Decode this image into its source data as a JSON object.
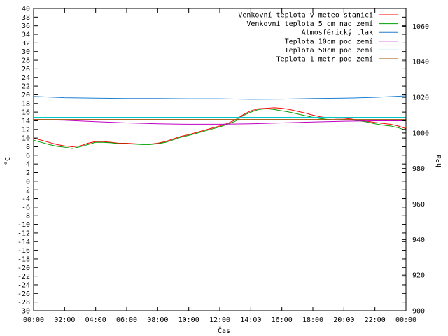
{
  "chart_data": {
    "type": "line",
    "xlabel": "Čas",
    "ylabel": "°C",
    "y2label": "hPa",
    "x_ticks": [
      "00:00",
      "02:00",
      "04:00",
      "06:00",
      "08:00",
      "10:00",
      "12:00",
      "14:00",
      "16:00",
      "18:00",
      "20:00",
      "22:00",
      "00:00"
    ],
    "xlim": [
      0,
      24
    ],
    "ylim": [
      -30,
      40
    ],
    "y_ticks": [
      40,
      38,
      36,
      34,
      32,
      30,
      28,
      26,
      24,
      22,
      20,
      18,
      16,
      14,
      12,
      10,
      8,
      6,
      4,
      2,
      0,
      -2,
      -4,
      -6,
      -8,
      -10,
      -12,
      -14,
      -16,
      -18,
      -20,
      -22,
      -24,
      -26,
      -28,
      -30
    ],
    "y2lim": [
      900,
      1070
    ],
    "y2_ticks": [
      1060,
      1040,
      1020,
      1000,
      980,
      960,
      940,
      920,
      900
    ],
    "grid": false,
    "legend_position": "top-right",
    "series": [
      {
        "name": "Venkovní teplota v meteo stanici",
        "color": "#ff0000",
        "axis": "left",
        "x": [
          0,
          0.5,
          1,
          1.5,
          2,
          2.5,
          3,
          3.5,
          4,
          4.5,
          5,
          5.5,
          6,
          6.5,
          7,
          7.5,
          8,
          8.5,
          9,
          9.5,
          10,
          10.5,
          11,
          11.5,
          12,
          12.5,
          13,
          13.5,
          14,
          14.5,
          15,
          15.5,
          16,
          16.5,
          17,
          17.5,
          18,
          18.5,
          19,
          19.5,
          20,
          20.5,
          21,
          21.5,
          22,
          22.5,
          23,
          23.5,
          24
        ],
        "values": [
          10,
          9.5,
          9,
          8.5,
          8.2,
          8,
          8.2,
          8.8,
          9.2,
          9.2,
          9,
          8.8,
          8.8,
          8.7,
          8.6,
          8.6,
          8.8,
          9.2,
          9.8,
          10.4,
          10.8,
          11.3,
          11.8,
          12.3,
          12.8,
          13.4,
          14.2,
          15.4,
          16.3,
          16.8,
          16.9,
          17,
          16.9,
          16.6,
          16.2,
          15.8,
          15.3,
          14.9,
          14.7,
          14.6,
          14.6,
          14.4,
          14.1,
          13.9,
          13.6,
          13.4,
          13.2,
          12.8,
          12.2
        ]
      },
      {
        "name": "Venkovní teplota 5 cm nad zemí",
        "color": "#00a000",
        "axis": "left",
        "x": [
          0,
          0.5,
          1,
          1.5,
          2,
          2.5,
          3,
          3.5,
          4,
          4.5,
          5,
          5.5,
          6,
          6.5,
          7,
          7.5,
          8,
          8.5,
          9,
          9.5,
          10,
          10.5,
          11,
          11.5,
          12,
          12.5,
          13,
          13.5,
          14,
          14.5,
          15,
          15.5,
          16,
          16.5,
          17,
          17.5,
          18,
          18.5,
          19,
          19.5,
          20,
          20.5,
          21,
          21.5,
          22,
          22.5,
          23,
          23.5,
          24
        ],
        "values": [
          9.5,
          9,
          8.5,
          8.1,
          7.9,
          7.6,
          8,
          8.5,
          9,
          9,
          8.9,
          8.7,
          8.7,
          8.6,
          8.5,
          8.5,
          8.7,
          9,
          9.6,
          10.2,
          10.6,
          11.1,
          11.6,
          12.1,
          12.6,
          13.2,
          13.9,
          15.2,
          16,
          16.6,
          16.8,
          16.6,
          16.3,
          16,
          15.6,
          15.2,
          14.8,
          14.5,
          14.3,
          14.2,
          14.3,
          14.2,
          14,
          13.7,
          13.3,
          13,
          12.8,
          12.4,
          11.8
        ]
      },
      {
        "name": "Atmosférický tlak",
        "color": "#1e7fd0",
        "axis": "right",
        "x": [
          0,
          2,
          4,
          6,
          8,
          10,
          12,
          14,
          16,
          18,
          20,
          22,
          24
        ],
        "values": [
          1020.5,
          1019.8,
          1019.5,
          1019.3,
          1019.3,
          1019.2,
          1019.2,
          1018.9,
          1019.0,
          1019.3,
          1019.5,
          1020.0,
          1020.8
        ]
      },
      {
        "name": "Teplota 10cm pod zemí",
        "color": "#c000c0",
        "axis": "left",
        "x": [
          0,
          2,
          4,
          6,
          8,
          10,
          12,
          14,
          16,
          18,
          20,
          22,
          24
        ],
        "values": [
          14.3,
          14.1,
          13.8,
          13.5,
          13.3,
          13.2,
          13.2,
          13.3,
          13.5,
          13.7,
          13.9,
          14,
          14
        ]
      },
      {
        "name": "Teplota 50cm pod zemí",
        "color": "#00c8c8",
        "axis": "left",
        "x": [
          0,
          24
        ],
        "values": [
          14.8,
          14.8
        ]
      },
      {
        "name": "Teplota 1 metr pod zemí",
        "color": "#a05000",
        "axis": "left",
        "x": [
          0,
          24
        ],
        "values": [
          14.3,
          14.3
        ]
      }
    ]
  }
}
